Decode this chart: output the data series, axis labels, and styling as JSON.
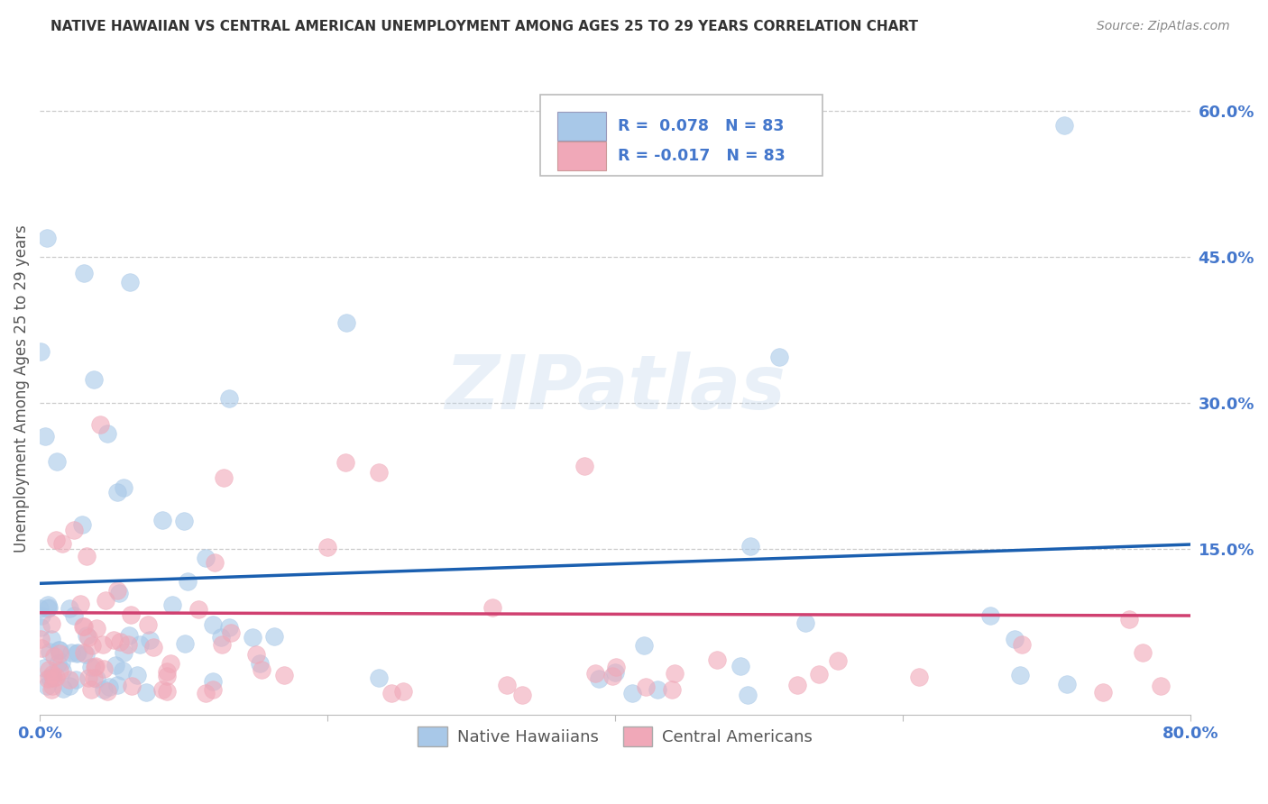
{
  "title": "NATIVE HAWAIIAN VS CENTRAL AMERICAN UNEMPLOYMENT AMONG AGES 25 TO 29 YEARS CORRELATION CHART",
  "source": "Source: ZipAtlas.com",
  "ylabel": "Unemployment Among Ages 25 to 29 years",
  "xlim": [
    0.0,
    0.8
  ],
  "ylim": [
    -0.02,
    0.65
  ],
  "xticks": [
    0.0,
    0.2,
    0.4,
    0.6,
    0.8
  ],
  "xticklabels": [
    "0.0%",
    "",
    "",
    "",
    "80.0%"
  ],
  "yticks_right": [
    0.15,
    0.3,
    0.45,
    0.6
  ],
  "yticklabels_right": [
    "15.0%",
    "30.0%",
    "45.0%",
    "60.0%"
  ],
  "grid_yticks": [
    0.15,
    0.3,
    0.45,
    0.6
  ],
  "background_color": "#ffffff",
  "grid_color": "#cccccc",
  "watermark": "ZIPatlas",
  "legend_r_blue": "0.078",
  "legend_r_pink": "-0.017",
  "legend_n": "83",
  "blue_color": "#a8c8e8",
  "pink_color": "#f0a8b8",
  "blue_line_color": "#1a5fb0",
  "pink_line_color": "#d04070",
  "title_color": "#333333",
  "source_color": "#888888",
  "axis_label_color": "#555555",
  "tick_color": "#4477cc",
  "seed": 12,
  "n_points": 83,
  "nh_trend_x0": 0.0,
  "nh_trend_y0": 0.115,
  "nh_trend_x1": 0.8,
  "nh_trend_y1": 0.155,
  "ca_trend_x0": 0.0,
  "ca_trend_y0": 0.085,
  "ca_trend_x1": 0.8,
  "ca_trend_y1": 0.082
}
